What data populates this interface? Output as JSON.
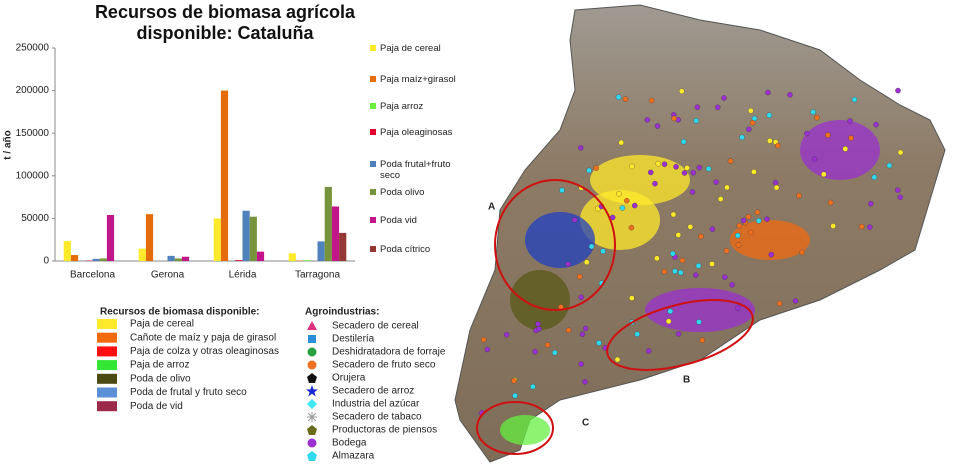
{
  "chart_data": {
    "type": "bar",
    "title": "Recursos de biomasa agrícola disponible: Cataluña",
    "y_label": "t / año",
    "categories": [
      "Barcelona",
      "Gerona",
      "Lérida",
      "Tarragona"
    ],
    "series": [
      {
        "name": "Paja de cereal",
        "color": "#ffe92b",
        "values": [
          23500,
          14500,
          50000,
          9000
        ]
      },
      {
        "name": "Paja maíz+girasol",
        "color": "#e46c0a",
        "values": [
          7000,
          55000,
          200000,
          500
        ]
      },
      {
        "name": "Paja arroz",
        "color": "#6cf040",
        "values": [
          0,
          0,
          0,
          1000
        ]
      },
      {
        "name": "Paja oleaginosas",
        "color": "#e2002c",
        "values": [
          500,
          0,
          1000,
          0
        ]
      },
      {
        "name": "Poda frutal+fruto seco",
        "color": "#4f81bd",
        "values": [
          2500,
          6000,
          59000,
          23000
        ]
      },
      {
        "name": "Poda olivo",
        "color": "#77933c",
        "values": [
          3000,
          3000,
          52000,
          87000
        ]
      },
      {
        "name": "Poda vid",
        "color": "#c0168a",
        "values": [
          54000,
          5000,
          11000,
          64000
        ]
      },
      {
        "name": "Poda cítrico",
        "color": "#953735",
        "values": [
          0,
          0,
          0,
          33000
        ]
      }
    ],
    "ylim": [
      0,
      250000
    ],
    "yticks": [
      0,
      50000,
      100000,
      150000,
      200000,
      250000
    ],
    "grid": false,
    "legend": "right"
  },
  "biomass_legend": {
    "title": "Recursos de biomasa disponible:",
    "items": [
      {
        "label": "Paja de cereal",
        "color": "#ffe92b"
      },
      {
        "label": "Cañote de maíz y paja de girasol",
        "color": "#f26a10"
      },
      {
        "label": "Paja de colza y otras oleaginosas",
        "color": "#ff1010"
      },
      {
        "label": "Paja de arroz",
        "color": "#33e633"
      },
      {
        "label": "Poda de olivo",
        "color": "#4a4a12"
      },
      {
        "label": "Poda de frutal y fruto seco",
        "color": "#5b8fd6"
      },
      {
        "label": "Poda de vid",
        "color": "#9b2a4a"
      }
    ]
  },
  "agro_legend": {
    "title": "Agroindustrias:",
    "items": [
      {
        "label": "Secadero de cereal",
        "color": "#e0307a"
      },
      {
        "label": "Destilería",
        "color": "#2a8fd6"
      },
      {
        "label": "Deshidratadora de forraje",
        "color": "#2aa040"
      },
      {
        "label": "Secadero de fruto seco",
        "color": "#f07020"
      },
      {
        "label": "Orujera",
        "color": "#111111"
      },
      {
        "label": "Secadero de arroz",
        "color": "#1a2ad0"
      },
      {
        "label": "Industria del azúcar",
        "color": "#40e8f0"
      },
      {
        "label": "Secadero de tabaco",
        "color": "#999999"
      },
      {
        "label": "Productoras de piensos",
        "color": "#6a6a1a"
      },
      {
        "label": "Bodega",
        "color": "#9a30d0"
      },
      {
        "label": "Almazara",
        "color": "#30d8f0"
      }
    ]
  },
  "map_labels": [
    "A",
    "B",
    "C"
  ]
}
